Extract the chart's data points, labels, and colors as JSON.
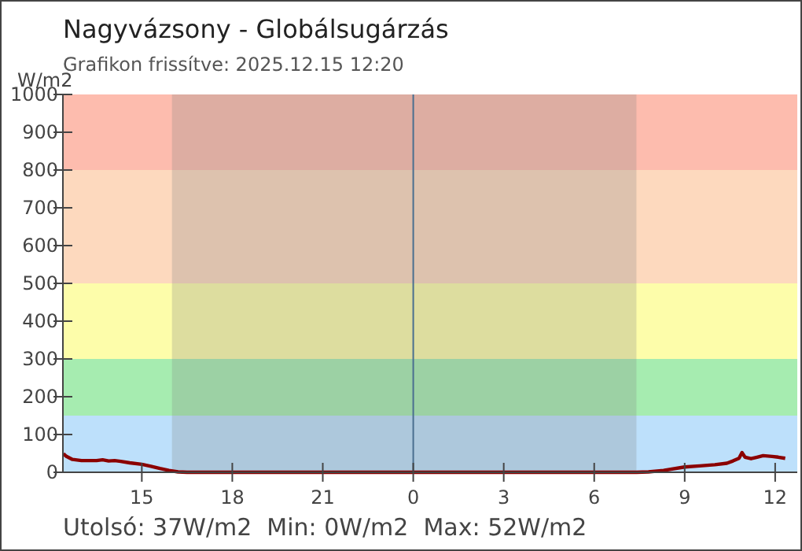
{
  "chart_data": {
    "type": "line",
    "title": "Nagyvázsony - Globálsugárzás",
    "subtitle": "Grafikon frissítve: 2025.12.15 12:20",
    "ylabel": "W/m2",
    "xlim": [
      "2025-12-14T12:23",
      "2025-12-15T12:44"
    ],
    "ylim": [
      0,
      1000
    ],
    "xticks": [
      {
        "value": "2025-12-14T15:00",
        "label": "15"
      },
      {
        "value": "2025-12-14T18:00",
        "label": "18"
      },
      {
        "value": "2025-12-14T21:00",
        "label": "21"
      },
      {
        "value": "2025-12-15T00:00",
        "label": "0"
      },
      {
        "value": "2025-12-15T03:00",
        "label": "3"
      },
      {
        "value": "2025-12-15T06:00",
        "label": "6"
      },
      {
        "value": "2025-12-15T09:00",
        "label": "9"
      },
      {
        "value": "2025-12-15T12:00",
        "label": "12"
      }
    ],
    "yticks": [
      0,
      100,
      200,
      300,
      400,
      500,
      600,
      700,
      800,
      900,
      1000
    ],
    "grid": false,
    "series": [
      {
        "color": "#8b0000",
        "x": [
          "2025-12-14T12:24",
          "2025-12-14T12:30",
          "2025-12-14T12:42",
          "2025-12-14T13:00",
          "2025-12-14T13:30",
          "2025-12-14T13:42",
          "2025-12-14T13:54",
          "2025-12-14T14:06",
          "2025-12-14T14:18",
          "2025-12-14T14:36",
          "2025-12-14T15:00",
          "2025-12-14T15:18",
          "2025-12-14T15:36",
          "2025-12-14T15:54",
          "2025-12-14T16:12",
          "2025-12-14T16:30",
          "2025-12-15T00:00",
          "2025-12-15T07:24",
          "2025-12-15T07:48",
          "2025-12-15T08:18",
          "2025-12-15T09:00",
          "2025-12-15T09:30",
          "2025-12-15T10:00",
          "2025-12-15T10:24",
          "2025-12-15T10:36",
          "2025-12-15T10:48",
          "2025-12-15T10:54",
          "2025-12-15T11:00",
          "2025-12-15T11:12",
          "2025-12-15T11:24",
          "2025-12-15T11:36",
          "2025-12-15T11:54",
          "2025-12-15T12:06",
          "2025-12-15T12:20"
        ],
        "values": [
          49,
          42,
          34,
          31,
          31,
          33,
          30,
          31,
          29,
          25,
          21,
          16,
          10,
          5,
          1,
          0,
          0,
          0,
          1,
          5,
          14,
          17,
          20,
          24,
          30,
          37,
          52,
          40,
          36,
          40,
          44,
          42,
          40,
          37
        ]
      }
    ],
    "bands": [
      {
        "axis": "y",
        "from": 0,
        "to": 150,
        "color": "#bde0fb"
      },
      {
        "axis": "y",
        "from": 150,
        "to": 300,
        "color": "#a6ecb0"
      },
      {
        "axis": "y",
        "from": 300,
        "to": 500,
        "color": "#fdfdaa"
      },
      {
        "axis": "y",
        "from": 500,
        "to": 800,
        "color": "#fdd9be"
      },
      {
        "axis": "y",
        "from": 800,
        "to": 1000,
        "color": "#fdbcae"
      },
      {
        "axis": "x",
        "from": "2025-12-14T16:00",
        "to": "2025-12-15T07:24",
        "color": "#7f7f7f"
      }
    ],
    "ref_lines": [
      {
        "axis": "x",
        "value": "2025-12-15T00:00",
        "color": "#4a6f8f"
      }
    ],
    "annotations": [
      "Utolsó: 37W/m2  Min: 0W/m2  Max: 52W/m2"
    ]
  }
}
